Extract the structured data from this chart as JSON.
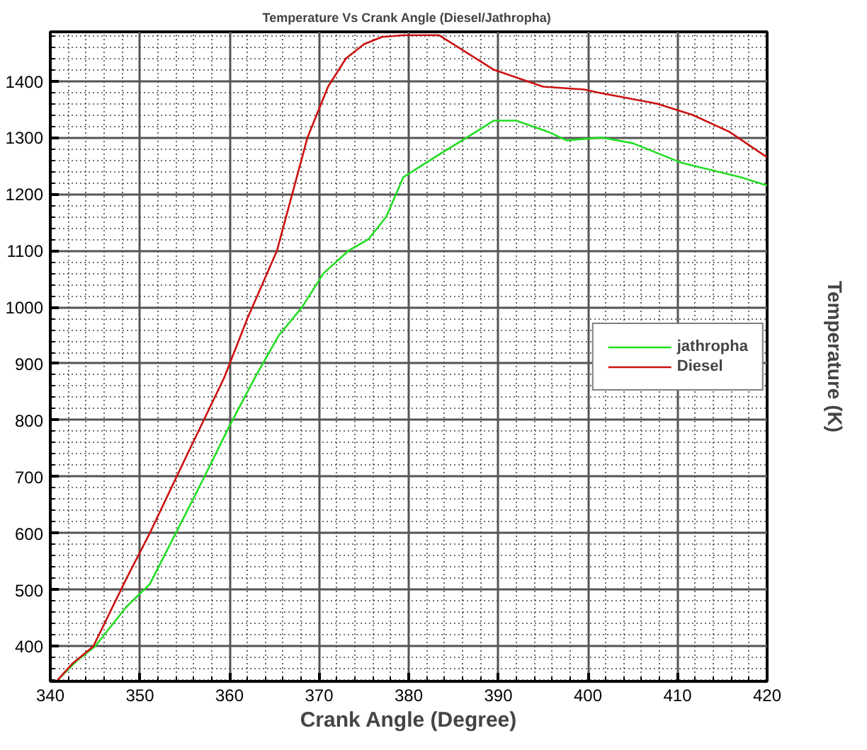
{
  "chart_data": {
    "type": "line",
    "title": "Temperature  Vs Crank Angle (Diesel/Jathropha)",
    "xlabel": "Crank Angle (Degree)",
    "ylabel": "Temperature (K)",
    "xlim": [
      340,
      420
    ],
    "ylim": [
      338,
      1487
    ],
    "xticks": [
      340,
      350,
      360,
      370,
      380,
      390,
      400,
      410,
      420
    ],
    "yticks": [
      400,
      500,
      600,
      700,
      800,
      900,
      1000,
      1100,
      1200,
      1300,
      1400
    ],
    "grid": true,
    "legend": "right",
    "line_style": "solid",
    "marker": "none",
    "series": [
      {
        "name": "jathropha",
        "color": "#22dd22",
        "x": [
          340.8,
          343,
          345,
          348.5,
          351.1,
          354,
          357.2,
          360,
          363,
          365.5,
          368.1,
          370.5,
          373.3,
          375.5,
          377.5,
          379.4,
          383.4,
          387.5,
          389.5,
          392,
          395.6,
          397.6,
          401.6,
          405,
          410.5,
          417,
          420
        ],
        "values": [
          340,
          375,
          400,
          470,
          510,
          600,
          700,
          790,
          880,
          950,
          1000,
          1060,
          1100,
          1120,
          1160,
          1230,
          1270,
          1310,
          1330,
          1330,
          1310,
          1295,
          1300,
          1290,
          1255,
          1230,
          1215
        ]
      },
      {
        "name": "Diesel",
        "color": "#cc1111",
        "x": [
          340.8,
          342.5,
          344.8,
          348.5,
          351.1,
          355,
          359.4,
          362,
          365.3,
          368.7,
          371,
          373,
          375,
          377,
          379.4,
          383.4,
          385.5,
          389.5,
          395,
          399.6,
          401,
          407.7,
          411.7,
          415.8,
          420
        ],
        "values": [
          340,
          370,
          400,
          520,
          600,
          730,
          875,
          980,
          1100,
          1300,
          1390,
          1440,
          1465,
          1478,
          1481,
          1481,
          1460,
          1420,
          1390,
          1385,
          1380,
          1360,
          1340,
          1310,
          1265
        ]
      }
    ]
  }
}
